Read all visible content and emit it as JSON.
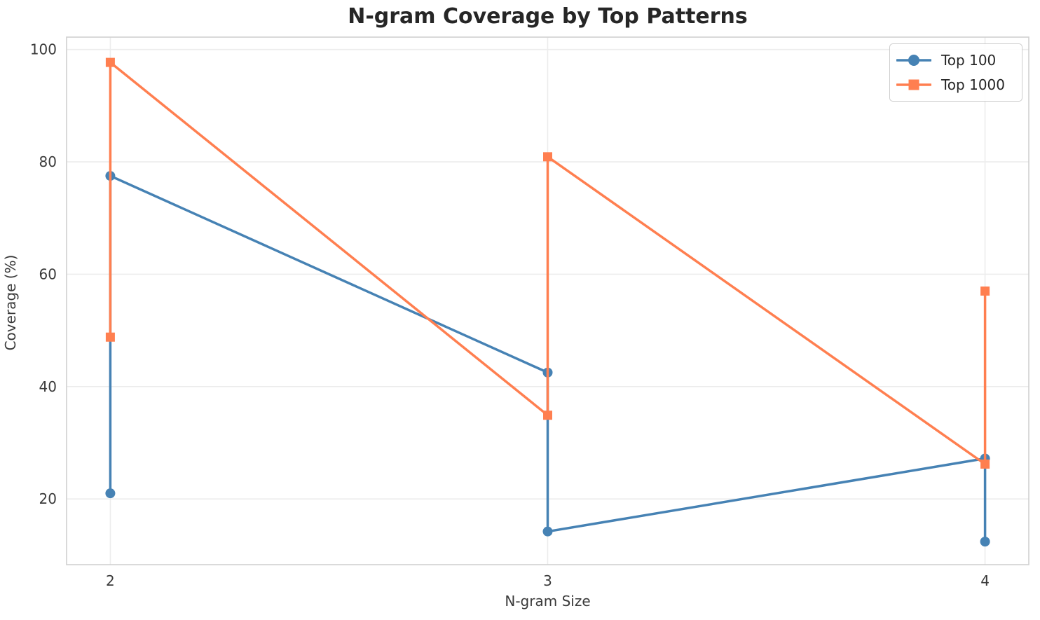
{
  "chart_data": {
    "type": "line",
    "title": "N-gram Coverage by Top Patterns",
    "xlabel": "N-gram Size",
    "ylabel": "Coverage (%)",
    "xticks": [
      2,
      3,
      4
    ],
    "yticks": [
      20,
      40,
      60,
      80,
      100
    ],
    "xlim": [
      1.9,
      4.1
    ],
    "ylim": [
      8.3,
      102.2
    ],
    "grid": true,
    "legend_position": "upper right",
    "series": [
      {
        "name": "Top 100",
        "color": "#4682B4",
        "marker": "circle",
        "points": [
          [
            2,
            21.0
          ],
          [
            2,
            77.5
          ],
          [
            3,
            42.5
          ],
          [
            3,
            14.2
          ],
          [
            4,
            27.2
          ],
          [
            4,
            12.4
          ]
        ]
      },
      {
        "name": "Top 1000",
        "color": "#FF7F50",
        "marker": "square",
        "points": [
          [
            2,
            48.8
          ],
          [
            2,
            97.7
          ],
          [
            3,
            34.9
          ],
          [
            3,
            80.9
          ],
          [
            4,
            26.2
          ],
          [
            4,
            57.0
          ]
        ]
      }
    ],
    "colors": {
      "background": "#ffffff",
      "grid": "#ececec",
      "spine": "#d0d0d0",
      "title_text": "#262626",
      "tick_text": "#3a3a3a"
    }
  }
}
